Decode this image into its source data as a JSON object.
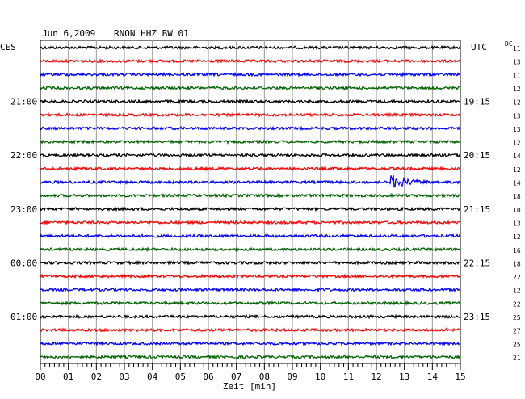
{
  "header": {
    "date": "Jun 6,2009",
    "station": "RNON HHZ BW 01",
    "left_tz": "CES",
    "right_tz": "UTC",
    "dc_label": "DC"
  },
  "chart_data": {
    "type": "line",
    "title": "Jun 6,2009   RNON HHZ BW 01",
    "xlabel": "Zeit [min]",
    "ylabel": "",
    "xlim": [
      0,
      15
    ],
    "x_ticks": [
      "00",
      "01",
      "02",
      "03",
      "04",
      "05",
      "06",
      "07",
      "08",
      "09",
      "10",
      "11",
      "12",
      "13",
      "14",
      "15"
    ],
    "row_count": 24,
    "trace_colors": [
      "#000000",
      "#ff0000",
      "#0000ff",
      "#006400"
    ],
    "left_time_labels": [
      {
        "row": 4,
        "label": "21:00"
      },
      {
        "row": 8,
        "label": "22:00"
      },
      {
        "row": 12,
        "label": "23:00"
      },
      {
        "row": 16,
        "label": "00:00"
      },
      {
        "row": 20,
        "label": "01:00"
      }
    ],
    "right_time_labels": [
      {
        "row": 4,
        "label": "19:15"
      },
      {
        "row": 8,
        "label": "20:15"
      },
      {
        "row": 12,
        "label": "21:15"
      },
      {
        "row": 16,
        "label": "22:15"
      },
      {
        "row": 20,
        "label": "23:15"
      }
    ],
    "dc_offsets": [
      "11",
      "13",
      "11",
      "12",
      "12",
      "13",
      "13",
      "12",
      "14",
      "12",
      "14",
      "18",
      "10",
      "13",
      "12",
      "16",
      "18",
      "22",
      "12",
      "22",
      "25",
      "27",
      "25",
      "21"
    ],
    "events": [
      {
        "row": 10,
        "start_min": 12.5,
        "end_min": 14.3,
        "peak_amplitude": 1.0
      },
      {
        "row": 21,
        "start_min": 14.5,
        "end_min": 14.6,
        "peak_amplitude": 0.6
      }
    ]
  }
}
